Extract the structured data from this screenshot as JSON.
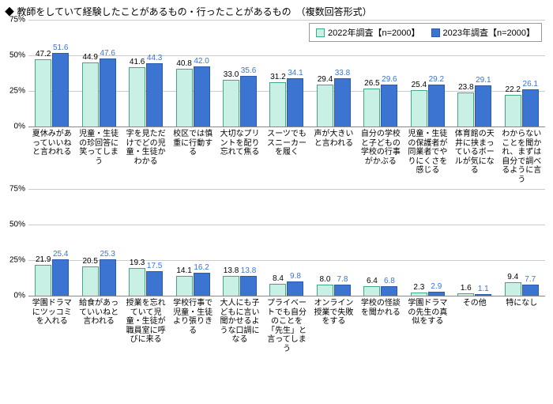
{
  "title": "◆ 教師をしていて経験したことがあるもの・行ったことがあるもの　（複数回答形式）",
  "legend": {
    "series1": "2022年調査【n=2000】",
    "series2": "2023年調査【n=2000】"
  },
  "colors": {
    "series1_fill": "#c9f0e4",
    "series1_border": "#3fa88a",
    "series2_fill": "#3b74d1",
    "series2_border": "#2a5aa8",
    "grid": "#cccccc",
    "axis": "#888888"
  },
  "chart1": {
    "ymax": 75,
    "yticks": [
      0,
      25,
      50,
      75
    ],
    "categories": [
      "夏休みがあっていいねと言われる",
      "児童・生徒の珍回答に笑ってしまう",
      "字を見ただけでどの児童・生徒かわかる",
      "校区では慎重に行動する",
      "大切なプリントを配り忘れて焦る",
      "スーツでもスニーカーを履く",
      "声が大きいと言われる",
      "自分の学校と子どもの学校の行事がかぶる",
      "児童・生徒の保護者が同業者でやりにくさを感じる",
      "体育館の天井に挟まっているボールが気になる",
      "わからないことを聞かれ、まずは自分で調べるように言う"
    ],
    "series1": [
      47.2,
      44.9,
      41.6,
      40.8,
      33.0,
      31.2,
      29.4,
      26.5,
      25.4,
      23.8,
      22.2
    ],
    "series2": [
      51.6,
      47.6,
      44.3,
      42.0,
      35.6,
      34.1,
      33.8,
      29.6,
      29.2,
      29.1,
      26.1
    ]
  },
  "chart2": {
    "ymax": 75,
    "yticks": [
      0,
      25,
      50,
      75
    ],
    "categories": [
      "学園ドラマにツッコミを入れる",
      "給食があっていいねと言われる",
      "授業を忘れていて児童・生徒が職員室に呼びに来る",
      "学校行事で児童・生徒より張りきる",
      "大人にも子どもに言い聞かせるような口調になる",
      "プライベートでも自分のことを「先生」と言ってしまう",
      "オンライン授業で失敗をする",
      "学校の怪談を聞かれる",
      "学園ドラマの先生の真似をする",
      "その他",
      "特になし"
    ],
    "series1": [
      21.9,
      20.5,
      19.3,
      14.1,
      13.8,
      8.4,
      8.0,
      6.4,
      2.3,
      1.6,
      9.4
    ],
    "series2": [
      25.4,
      25.3,
      17.5,
      16.2,
      13.8,
      9.8,
      7.8,
      6.8,
      2.9,
      1.1,
      7.7
    ]
  }
}
